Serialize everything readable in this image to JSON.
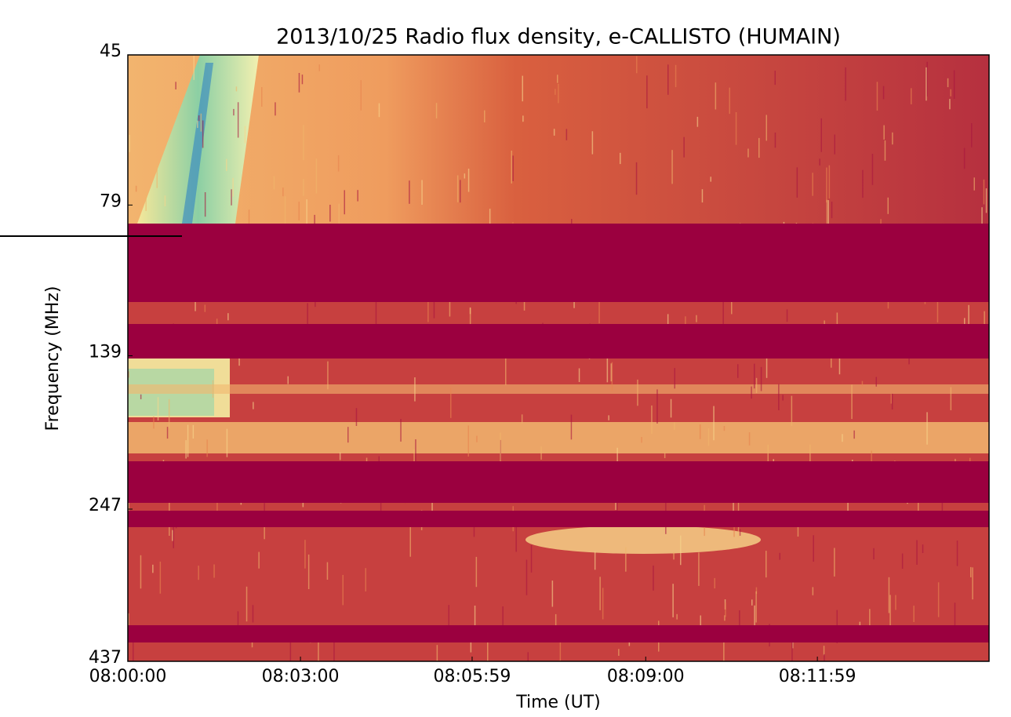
{
  "chart_data": {
    "type": "spectrogram",
    "title": "2013/10/25  Radio flux density, e-CALLISTO (HUMAIN)",
    "x_label": "Time (UT)",
    "y_label": "Frequency (MHz)",
    "xlim": [
      0,
      898
    ],
    "xticks": [
      {
        "value": 0,
        "label": "08:00:00"
      },
      {
        "value": 180,
        "label": "08:03:00"
      },
      {
        "value": 359,
        "label": "08:05:59"
      },
      {
        "value": 540,
        "label": "08:09:00"
      },
      {
        "value": 719,
        "label": "08:11:59"
      }
    ],
    "ylim": [
      437,
      45
    ],
    "yticks": [
      45,
      79,
      139,
      247,
      437
    ],
    "y_log": true
  }
}
